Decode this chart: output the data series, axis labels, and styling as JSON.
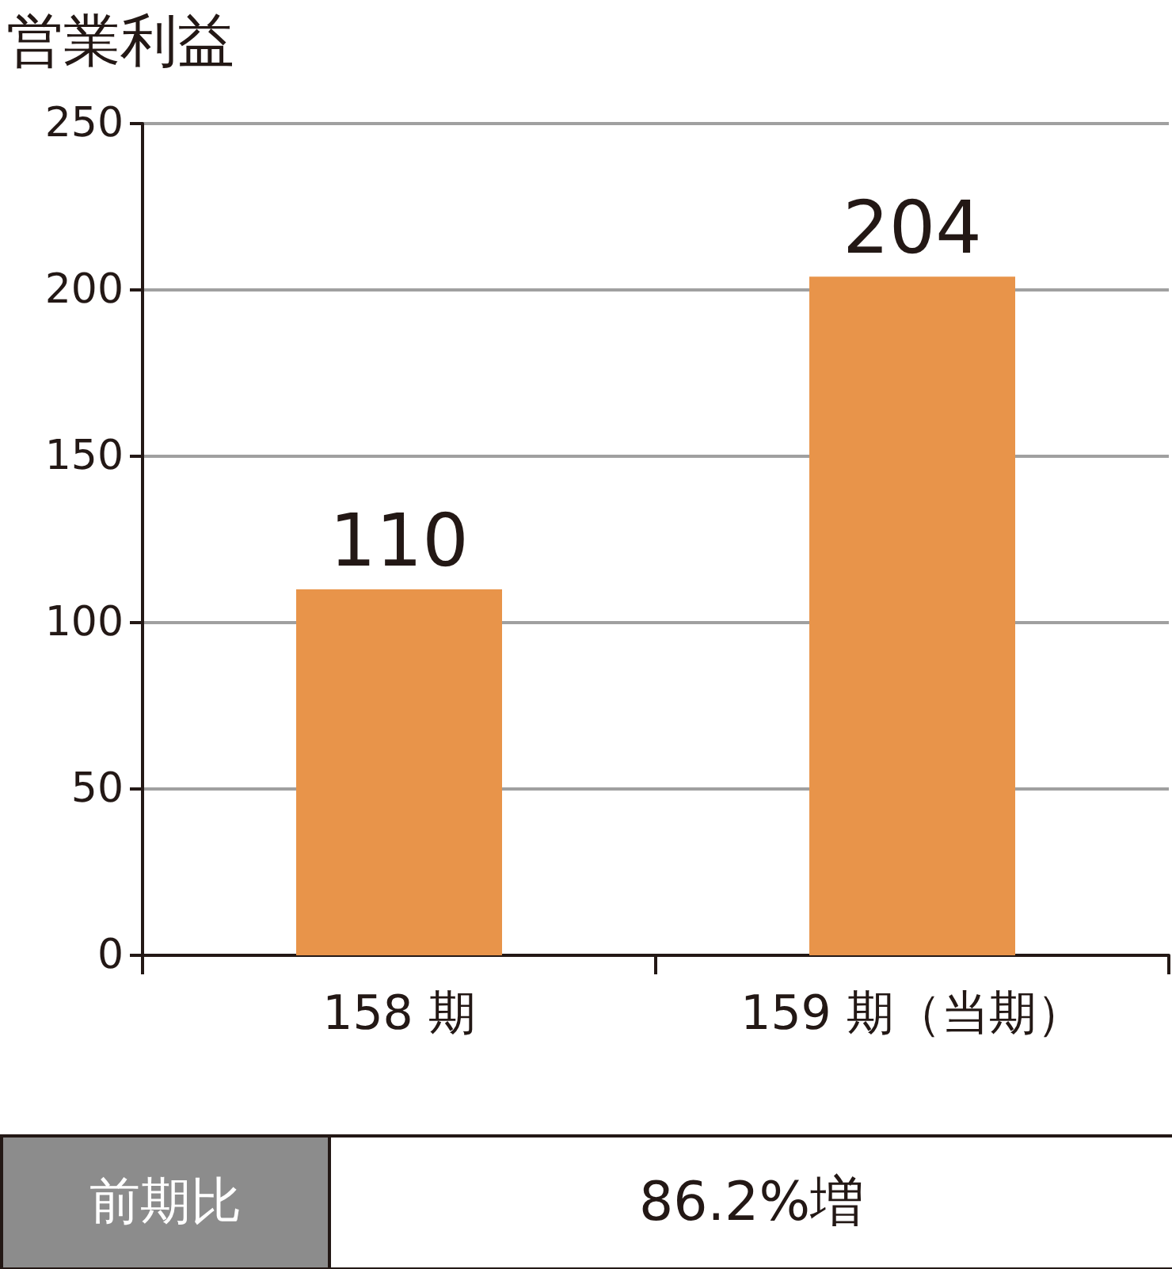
{
  "chart_data": {
    "type": "bar",
    "title": "営業利益",
    "categories": [
      "158 期",
      "159 期（当期）"
    ],
    "values": [
      110,
      204
    ],
    "color": "#e8944a",
    "ylim": [
      0,
      250
    ],
    "yticks": [
      0,
      50,
      100,
      150,
      200,
      250
    ],
    "grid": "y",
    "data_labels": true,
    "annotations": [
      "前期比",
      "86.2%増"
    ]
  }
}
